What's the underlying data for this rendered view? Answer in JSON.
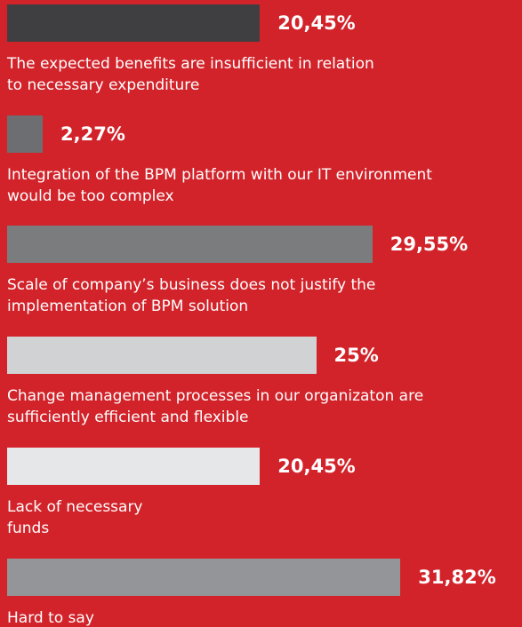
{
  "chart_data": {
    "type": "bar",
    "orientation": "horizontal",
    "categories": [
      "The expected benefits are insufficient in relation\nto necessary expenditure",
      "Integration of the BPM platform with our IT environment\nwould be too complex",
      "Scale of company’s business does not justify the\nimplementation of BPM solution",
      "Change management processes in our organizaton are\nsufficiently efficient and flexible",
      "Lack of necessary\nfunds",
      "Hard to say"
    ],
    "values": [
      20.45,
      2.27,
      29.55,
      25,
      20.45,
      31.82
    ],
    "value_labels": [
      "20,45%",
      "2,27%",
      "29,55%",
      "25%",
      "20,45%",
      "31,82%"
    ],
    "colors": [
      "#3f3f41",
      "#6d6e71",
      "#7b7c7e",
      "#d1d2d4",
      "#e6e7e8",
      "#939598"
    ],
    "background": "#d2232a"
  }
}
